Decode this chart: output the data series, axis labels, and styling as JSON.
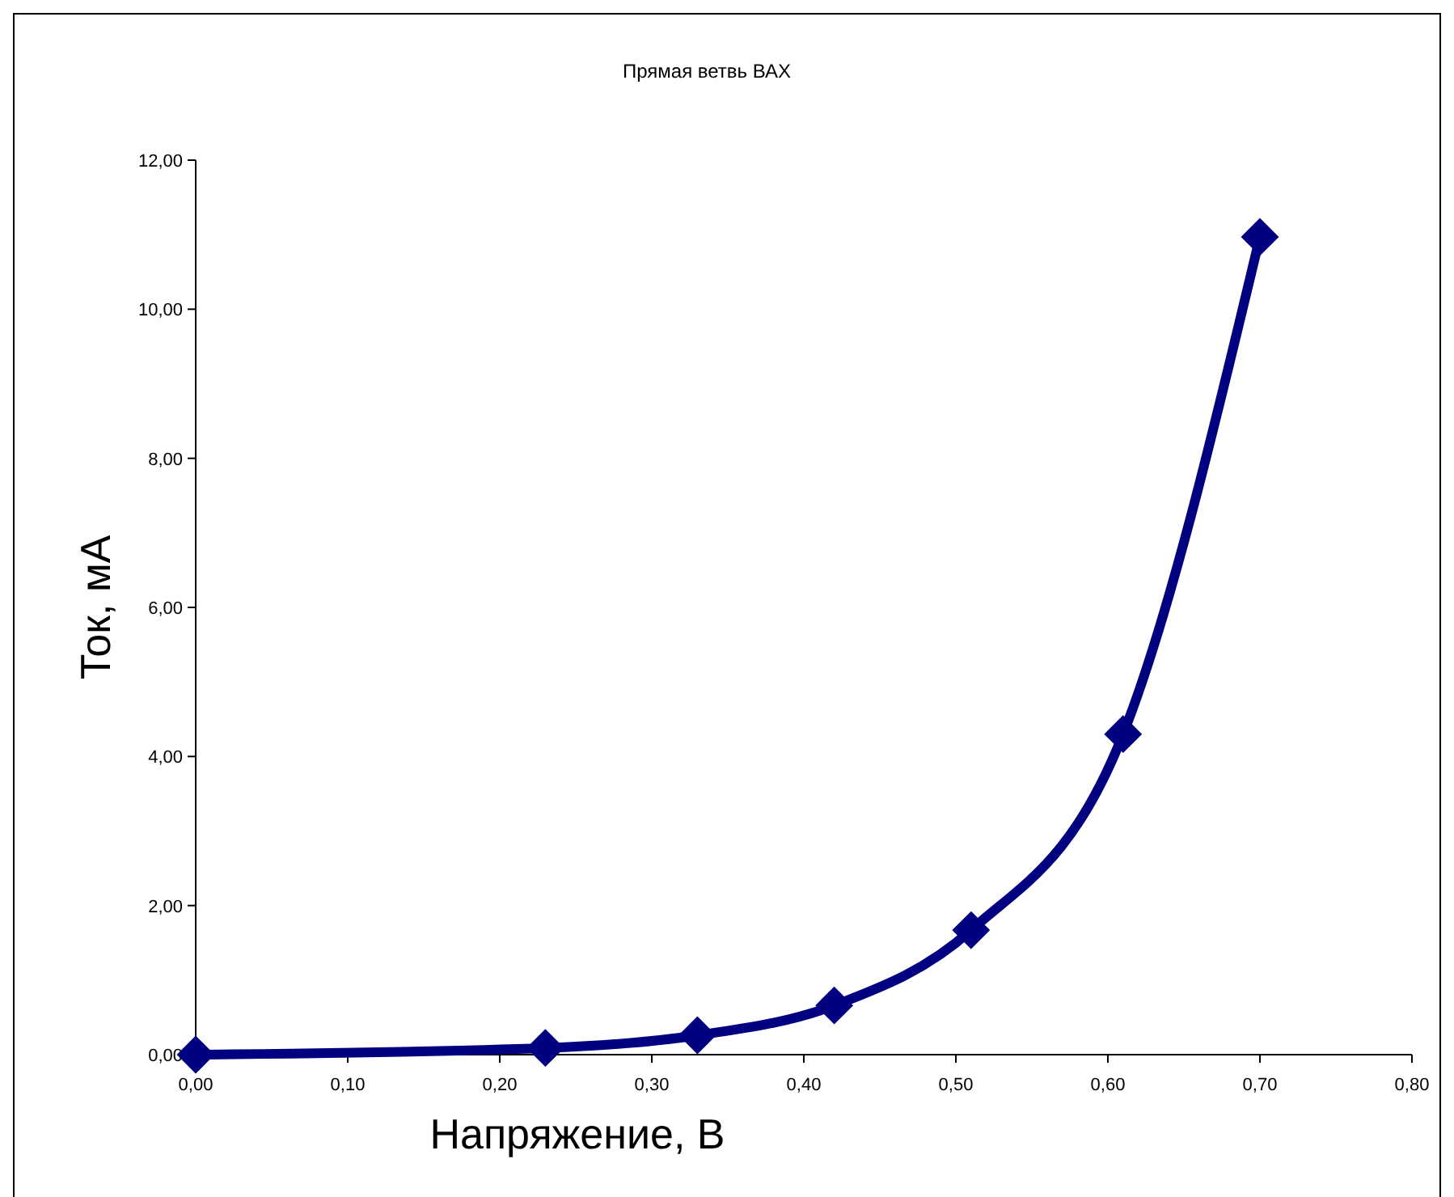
{
  "chart_data": {
    "type": "line",
    "title": "Прямая ветвь ВАХ",
    "xlabel": "Напряжение, В",
    "ylabel": "Ток, мА",
    "x": [
      0,
      0.23,
      0.33,
      0.42,
      0.51,
      0.61,
      0.7
    ],
    "series": [
      {
        "color": "#000080",
        "values": [
          0,
          0.09,
          0.26,
          0.66,
          1.67,
          4.3,
          10.97
        ]
      }
    ],
    "xlim": [
      0,
      0.8
    ],
    "ylim": [
      0,
      12
    ],
    "xticks": [
      {
        "value": 0,
        "label": "0,00"
      },
      {
        "value": 0.1,
        "label": "0,10"
      },
      {
        "value": 0.2,
        "label": "0,20"
      },
      {
        "value": 0.3,
        "label": "0,30"
      },
      {
        "value": 0.4,
        "label": "0,40"
      },
      {
        "value": 0.5,
        "label": "0,50"
      },
      {
        "value": 0.6,
        "label": "0,60"
      },
      {
        "value": 0.7,
        "label": "0,70"
      },
      {
        "value": 0.8,
        "label": "0,80"
      }
    ],
    "yticks": [
      {
        "value": 0,
        "label": "0,00"
      },
      {
        "value": 2,
        "label": "2,00"
      },
      {
        "value": 4,
        "label": "4,00"
      },
      {
        "value": 6,
        "label": "6,00"
      },
      {
        "value": 8,
        "label": "8,00"
      },
      {
        "value": 10,
        "label": "10,00"
      },
      {
        "value": 12,
        "label": "12,00"
      }
    ],
    "grid": false,
    "marker": "diamond",
    "line_style": "solid"
  }
}
